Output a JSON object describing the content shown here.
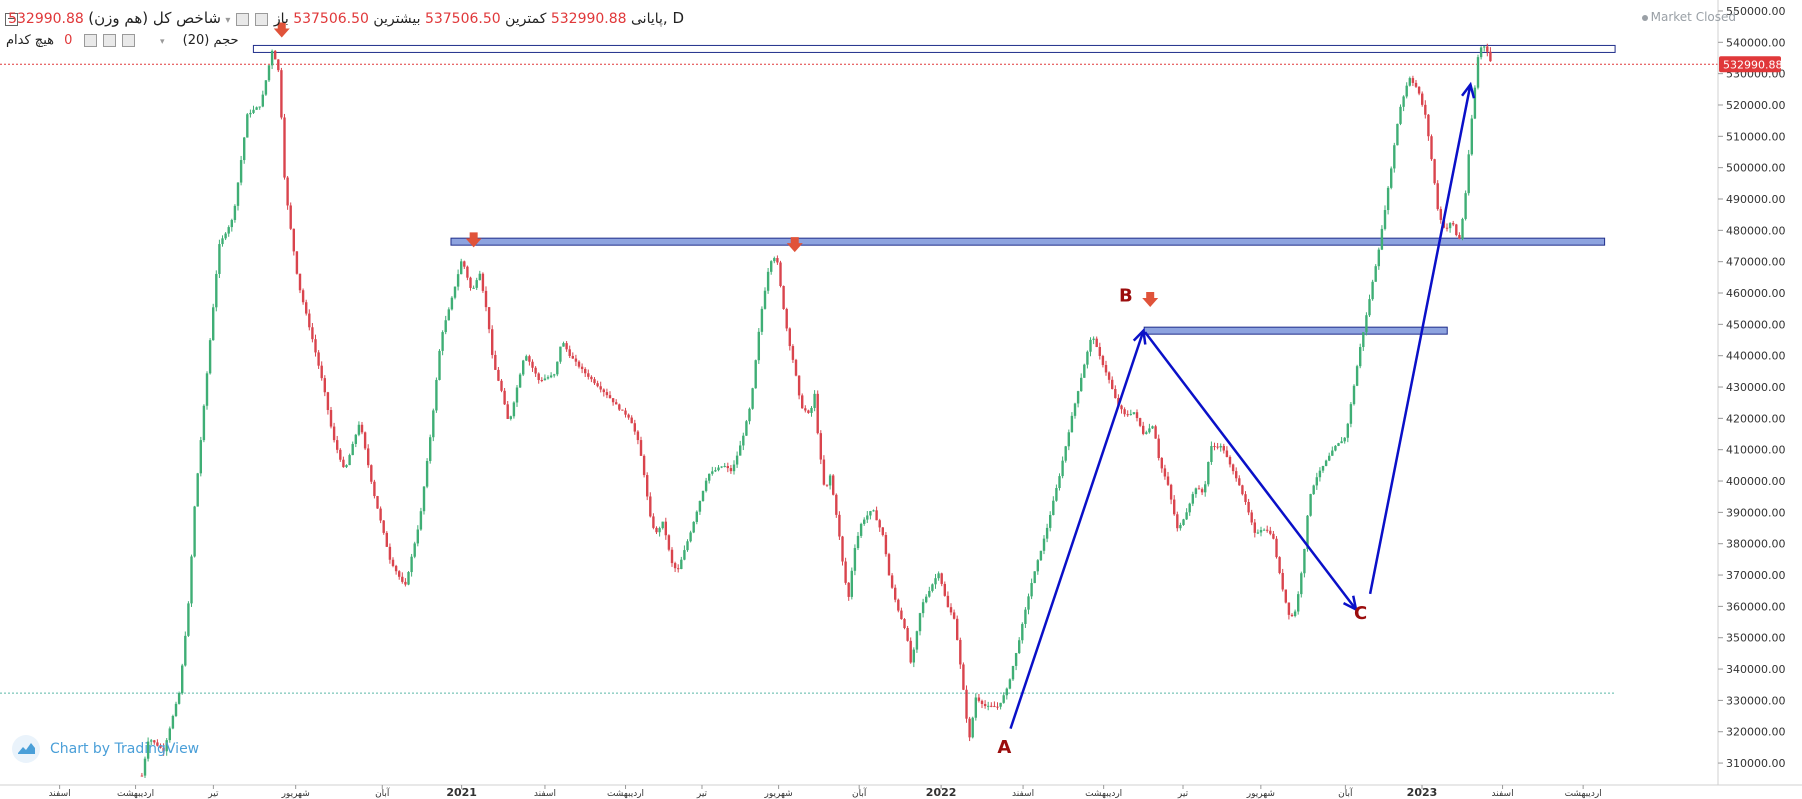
{
  "header": {
    "symbol": "شاخص کل (هم وزن), D",
    "collapse_icon": "minus-square-icon",
    "open_label": "باز",
    "open_value": "537506.50",
    "high_label": "بیشترین",
    "high_value": "537506.50",
    "low_label": "کمترین",
    "low_value": "532990.88",
    "close_label": "پایانی",
    "close_value": "532990.88",
    "volume_label": "حجم (20)",
    "volume_none": "هیچ کدام",
    "volume_value": "0"
  },
  "status": {
    "market": "Market Closed",
    "dot_color": "#9aa0a6"
  },
  "watermark": {
    "text": "Chart by TradingView",
    "icon": "tradingview-logo-icon"
  },
  "colors": {
    "up": "#3fae75",
    "down": "#d9444d",
    "zone_fill": "#8da3df",
    "zone_stroke": "#1f2d8a",
    "arrow_line": "#0a10c8",
    "marker": "#e0533a",
    "label": "#9b0d0d",
    "price_badge": "#e0383a"
  },
  "chart_data": {
    "type": "candlestick",
    "title": "شاخص کل (هم وزن), D",
    "current_price": "532990.88",
    "ylim": [
      303000,
      553500
    ],
    "y_ticks": [
      310000,
      320000,
      330000,
      340000,
      350000,
      360000,
      370000,
      380000,
      390000,
      400000,
      410000,
      420000,
      430000,
      440000,
      450000,
      460000,
      470000,
      480000,
      490000,
      500000,
      510000,
      520000,
      530000,
      540000,
      550000
    ],
    "y_tick_labels": [
      "310000.00",
      "320000.00",
      "330000.00",
      "340000.00",
      "350000.00",
      "360000.00",
      "370000.00",
      "380000.00",
      "390000.00",
      "400000.00",
      "410000.00",
      "420000.00",
      "430000.00",
      "440000.00",
      "450000.00",
      "460000.00",
      "470000.00",
      "480000.00",
      "490000.00",
      "500000.00",
      "510000.00",
      "520000.00",
      "530000.00",
      "540000.00",
      "550000.00"
    ],
    "x_ticks": [
      {
        "t": 0.0347,
        "label": "اسفند"
      },
      {
        "t": 0.0789,
        "label": "اردیبهشت"
      },
      {
        "t": 0.1242,
        "label": "تیر"
      },
      {
        "t": 0.1721,
        "label": "شهریور"
      },
      {
        "t": 0.2225,
        "label": "آبان"
      },
      {
        "t": 0.2687,
        "label": "2021"
      },
      {
        "t": 0.3172,
        "label": "اسفند"
      },
      {
        "t": 0.3641,
        "label": "اردیبهشت"
      },
      {
        "t": 0.4086,
        "label": "تیر"
      },
      {
        "t": 0.4532,
        "label": "شهریور"
      },
      {
        "t": 0.5001,
        "label": "آبان"
      },
      {
        "t": 0.5478,
        "label": "2022"
      },
      {
        "t": 0.5955,
        "label": "اسفند"
      },
      {
        "t": 0.6424,
        "label": "اردیبهشت"
      },
      {
        "t": 0.6886,
        "label": "تیر"
      },
      {
        "t": 0.7339,
        "label": "شهریور"
      },
      {
        "t": 0.7831,
        "label": "آبان"
      },
      {
        "t": 0.8277,
        "label": "2023"
      },
      {
        "t": 0.8746,
        "label": "اسفند"
      },
      {
        "t": 0.9215,
        "label": "اردیبهشت"
      }
    ],
    "price_path": [
      [
        0.0826,
        306000
      ],
      [
        0.0865,
        318000
      ],
      [
        0.0953,
        314000
      ],
      [
        0.1046,
        333000
      ],
      [
        0.1099,
        362000
      ],
      [
        0.1133,
        392000
      ],
      [
        0.1206,
        435000
      ],
      [
        0.1274,
        475000
      ],
      [
        0.1357,
        484000
      ],
      [
        0.144,
        517000
      ],
      [
        0.1518,
        520000
      ],
      [
        0.1586,
        538000
      ],
      [
        0.1625,
        530000
      ],
      [
        0.1659,
        494000
      ],
      [
        0.1693,
        480000
      ],
      [
        0.1737,
        463000
      ],
      [
        0.1811,
        447000
      ],
      [
        0.1884,
        430000
      ],
      [
        0.1938,
        414000
      ],
      [
        0.2006,
        403000
      ],
      [
        0.2094,
        419000
      ],
      [
        0.2172,
        397000
      ],
      [
        0.227,
        375000
      ],
      [
        0.2357,
        366000
      ],
      [
        0.2445,
        388000
      ],
      [
        0.2513,
        418000
      ],
      [
        0.2567,
        446000
      ],
      [
        0.262,
        456000
      ],
      [
        0.2689,
        471000
      ],
      [
        0.2747,
        460000
      ],
      [
        0.2791,
        467000
      ],
      [
        0.284,
        452000
      ],
      [
        0.2869,
        438000
      ],
      [
        0.2918,
        429000
      ],
      [
        0.2962,
        418000
      ],
      [
        0.3006,
        429000
      ],
      [
        0.3055,
        441000
      ],
      [
        0.3138,
        432000
      ],
      [
        0.323,
        434000
      ],
      [
        0.3269,
        445000
      ],
      [
        0.3318,
        440000
      ],
      [
        0.3396,
        435000
      ],
      [
        0.3469,
        431000
      ],
      [
        0.3543,
        427000
      ],
      [
        0.3606,
        423000
      ],
      [
        0.3669,
        420000
      ],
      [
        0.3718,
        412000
      ],
      [
        0.3747,
        403000
      ],
      [
        0.3782,
        389000
      ],
      [
        0.3816,
        383000
      ],
      [
        0.386,
        387000
      ],
      [
        0.3908,
        374000
      ],
      [
        0.3943,
        371000
      ],
      [
        0.4021,
        384000
      ],
      [
        0.407,
        393000
      ],
      [
        0.4119,
        402000
      ],
      [
        0.4211,
        405000
      ],
      [
        0.426,
        403000
      ],
      [
        0.4319,
        413000
      ],
      [
        0.4372,
        425000
      ],
      [
        0.4426,
        452000
      ],
      [
        0.448,
        470000
      ],
      [
        0.4519,
        472000
      ],
      [
        0.4553,
        458000
      ],
      [
        0.4587,
        446000
      ],
      [
        0.4626,
        436000
      ],
      [
        0.466,
        424000
      ],
      [
        0.4714,
        421000
      ],
      [
        0.4743,
        428000
      ],
      [
        0.4763,
        413000
      ],
      [
        0.4802,
        396000
      ],
      [
        0.4831,
        402000
      ],
      [
        0.4875,
        387000
      ],
      [
        0.4909,
        372000
      ],
      [
        0.4938,
        362000
      ],
      [
        0.4972,
        378000
      ],
      [
        0.5016,
        387000
      ],
      [
        0.508,
        391000
      ],
      [
        0.5143,
        382000
      ],
      [
        0.5177,
        369000
      ],
      [
        0.5221,
        360000
      ],
      [
        0.5274,
        352000
      ],
      [
        0.5304,
        341000
      ],
      [
        0.5362,
        360000
      ],
      [
        0.5426,
        367000
      ],
      [
        0.5465,
        371000
      ],
      [
        0.5514,
        360000
      ],
      [
        0.5557,
        356000
      ],
      [
        0.5606,
        334000
      ],
      [
        0.5641,
        317000
      ],
      [
        0.568,
        331000
      ],
      [
        0.5738,
        328000
      ],
      [
        0.5811,
        328000
      ],
      [
        0.5865,
        334000
      ],
      [
        0.5919,
        346000
      ],
      [
        0.5997,
        366000
      ],
      [
        0.609,
        384000
      ],
      [
        0.6168,
        402000
      ],
      [
        0.6241,
        421000
      ],
      [
        0.6319,
        439000
      ],
      [
        0.6358,
        447000
      ],
      [
        0.6392,
        441000
      ],
      [
        0.6451,
        433000
      ],
      [
        0.65,
        425000
      ],
      [
        0.6548,
        421000
      ],
      [
        0.6602,
        422000
      ],
      [
        0.6656,
        415000
      ],
      [
        0.6714,
        418000
      ],
      [
        0.6749,
        406000
      ],
      [
        0.6797,
        399000
      ],
      [
        0.6856,
        384000
      ],
      [
        0.6905,
        390000
      ],
      [
        0.6958,
        398000
      ],
      [
        0.7007,
        396000
      ],
      [
        0.7046,
        411000
      ],
      [
        0.7115,
        411000
      ],
      [
        0.7168,
        404000
      ],
      [
        0.7207,
        400000
      ],
      [
        0.7256,
        392000
      ],
      [
        0.7305,
        383000
      ],
      [
        0.7349,
        385000
      ],
      [
        0.7407,
        383000
      ],
      [
        0.7446,
        371000
      ],
      [
        0.7476,
        363000
      ],
      [
        0.751,
        356000
      ],
      [
        0.7544,
        359000
      ],
      [
        0.7588,
        376000
      ],
      [
        0.7622,
        395000
      ],
      [
        0.7661,
        401000
      ],
      [
        0.7715,
        406000
      ],
      [
        0.7773,
        411000
      ],
      [
        0.7832,
        414000
      ],
      [
        0.7871,
        427000
      ],
      [
        0.7915,
        442000
      ],
      [
        0.7944,
        450000
      ],
      [
        0.7988,
        463000
      ],
      [
        0.8032,
        476000
      ],
      [
        0.809,
        497000
      ],
      [
        0.8144,
        518000
      ],
      [
        0.8203,
        529000
      ],
      [
        0.8252,
        525000
      ],
      [
        0.83,
        516000
      ],
      [
        0.8339,
        500000
      ],
      [
        0.8373,
        485000
      ],
      [
        0.8413,
        480000
      ],
      [
        0.8452,
        483000
      ],
      [
        0.8491,
        476000
      ],
      [
        0.8525,
        488000
      ],
      [
        0.8564,
        514000
      ],
      [
        0.8608,
        538000
      ],
      [
        0.8647,
        539000
      ],
      [
        0.8681,
        533000
      ]
    ],
    "annotations": {
      "zones": [
        {
          "t0": 0.1475,
          "t1": 0.9401,
          "p0": 537400,
          "p1": 539000,
          "style": "outline"
        },
        {
          "t0": 0.2625,
          "t1": 0.934,
          "p0": 476500,
          "p1": 477500,
          "style": "filled"
        },
        {
          "t0": 0.666,
          "t1": 0.8424,
          "p0": 448300,
          "p1": 449100,
          "style": "filled"
        }
      ],
      "arrows": [
        {
          "from": [
            0.5882,
            321000
          ],
          "to": [
            0.6656,
            448000
          ]
        },
        {
          "from": [
            0.6665,
            447500
          ],
          "to": [
            0.7893,
            359000
          ]
        },
        {
          "from": [
            0.7975,
            364000
          ],
          "to": [
            0.8559,
            526500
          ]
        }
      ],
      "labels": [
        {
          "text": "A",
          "t": 0.5846,
          "p": 313200
        },
        {
          "text": "B",
          "t": 0.6553,
          "p": 457300
        },
        {
          "text": "C",
          "t": 0.792,
          "p": 356000
        }
      ],
      "markers": [
        {
          "t": 0.164,
          "p": 542500
        },
        {
          "t": 0.2757,
          "p": 475500
        },
        {
          "t": 0.4626,
          "p": 474000
        },
        {
          "t": 0.6695,
          "p": 456500
        }
      ],
      "dotted_support": 332300
    }
  }
}
